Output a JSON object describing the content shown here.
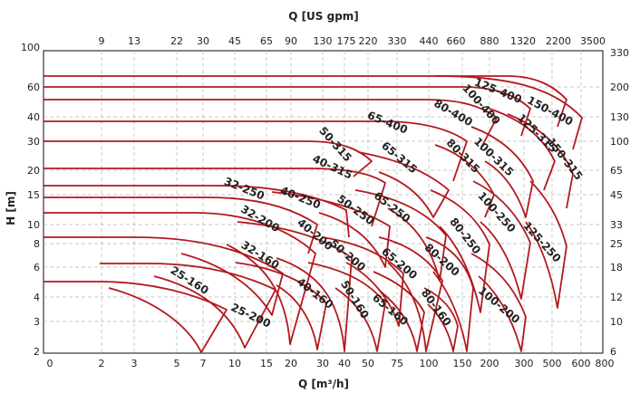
{
  "chart_data": {
    "type": "line",
    "title": "",
    "x_top": {
      "label": "Q [US gpm]",
      "ticks": [
        "9",
        "13",
        "22",
        "30",
        "45",
        "65",
        "90",
        "130",
        "175",
        "220",
        "330",
        "440",
        "660",
        "880",
        "1320",
        "2200",
        "3500"
      ]
    },
    "x_bottom": {
      "label": "Q [m³/h]",
      "ticks": [
        "0",
        "2",
        "3",
        "5",
        "7",
        "10",
        "15",
        "20",
        "30",
        "40",
        "50",
        "75",
        "100",
        "150",
        "200",
        "300",
        "500",
        "600",
        "800"
      ]
    },
    "y_left": {
      "label": "H [m]",
      "ticks": [
        "2",
        "3",
        "4",
        "6",
        "8",
        "10",
        "15",
        "20",
        "30",
        "40",
        "60",
        "100"
      ]
    },
    "y_right": {
      "label": "",
      "ticks": [
        "6",
        "10",
        "12",
        "18",
        "25",
        "33",
        "45",
        "65",
        "100",
        "130",
        "200",
        "330"
      ]
    },
    "grid": true,
    "series_color": "#b3191e",
    "series": [
      {
        "name": "25-160",
        "label": "25-160"
      },
      {
        "name": "25-200",
        "label": "25-200"
      },
      {
        "name": "32-160",
        "label": "32-160"
      },
      {
        "name": "32-200",
        "label": "32-200"
      },
      {
        "name": "32-250",
        "label": "32-250"
      },
      {
        "name": "40-160",
        "label": "40-160"
      },
      {
        "name": "40-200",
        "label": "40-200"
      },
      {
        "name": "40-250",
        "label": "40-250"
      },
      {
        "name": "40-315",
        "label": "40-315"
      },
      {
        "name": "50-160",
        "label": "50-160"
      },
      {
        "name": "50-200",
        "label": "50-200"
      },
      {
        "name": "50-250",
        "label": "50-250"
      },
      {
        "name": "50-315",
        "label": "50-315"
      },
      {
        "name": "65-160",
        "label": "65-160"
      },
      {
        "name": "65-200",
        "label": "65-200"
      },
      {
        "name": "65-250",
        "label": "65-250"
      },
      {
        "name": "65-315",
        "label": "65-315"
      },
      {
        "name": "65-400",
        "label": "65-400"
      },
      {
        "name": "80-160",
        "label": "80-160"
      },
      {
        "name": "80-200",
        "label": "80-200"
      },
      {
        "name": "80-250",
        "label": "80-250"
      },
      {
        "name": "80-315",
        "label": "80-315"
      },
      {
        "name": "80-400",
        "label": "80-400"
      },
      {
        "name": "100-200",
        "label": "100-200"
      },
      {
        "name": "100-250",
        "label": "100-250"
      },
      {
        "name": "100-315",
        "label": "100-315"
      },
      {
        "name": "100-400",
        "label": "100-400"
      },
      {
        "name": "125-250",
        "label": "125-250"
      },
      {
        "name": "125-315",
        "label": "125-315"
      },
      {
        "name": "125-400",
        "label": "125-400"
      },
      {
        "name": "150-315",
        "label": "150-315"
      },
      {
        "name": "150-400",
        "label": "150-400"
      }
    ]
  }
}
